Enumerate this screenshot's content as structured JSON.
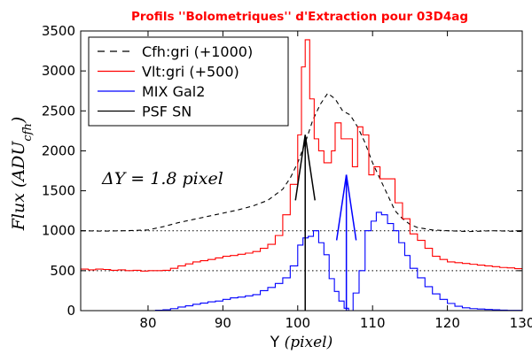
{
  "chart_data": {
    "type": "line",
    "title": "Profils ''Bolometriques'' d'Extraction pour 03D4ag",
    "xlabel_text": "Y",
    "xlabel_math": "(pixel)",
    "ylabel_math": "Flux (ADU",
    "ylabel_sub": "cfh",
    "ylabel_close": ")",
    "xlim": [
      71,
      130
    ],
    "ylim": [
      0,
      3500
    ],
    "xticks": [
      80,
      90,
      100,
      110,
      120,
      130
    ],
    "yticks": [
      0,
      500,
      1000,
      1500,
      2000,
      2500,
      3000,
      3500
    ],
    "annotation": "ΔY = 1.8 pixel",
    "reference_lines": [
      {
        "y": 1000,
        "style": "dotted",
        "color": "#000000"
      },
      {
        "y": 500,
        "style": "dotted",
        "color": "#000000"
      }
    ],
    "legend": [
      "Cfh:gri (+1000)",
      "Vlt:gri (+500)",
      "MIX Gal2",
      "PSF SN"
    ],
    "series": [
      {
        "name": "Cfh:gri (+1000)",
        "color": "#000000",
        "style": "dashed",
        "points": [
          [
            71,
            1000
          ],
          [
            74,
            995
          ],
          [
            77,
            1000
          ],
          [
            80,
            1010
          ],
          [
            82,
            1050
          ],
          [
            84,
            1100
          ],
          [
            86,
            1140
          ],
          [
            88,
            1180
          ],
          [
            90,
            1220
          ],
          [
            92,
            1260
          ],
          [
            94,
            1310
          ],
          [
            96,
            1380
          ],
          [
            98,
            1520
          ],
          [
            99,
            1660
          ],
          [
            100,
            1850
          ],
          [
            101,
            2100
          ],
          [
            102,
            2380
          ],
          [
            103,
            2580
          ],
          [
            104,
            2720
          ],
          [
            105,
            2650
          ],
          [
            106,
            2500
          ],
          [
            107,
            2450
          ],
          [
            108,
            2300
          ],
          [
            109,
            2100
          ],
          [
            110,
            1850
          ],
          [
            111,
            1650
          ],
          [
            112,
            1450
          ],
          [
            113,
            1250
          ],
          [
            114,
            1150
          ],
          [
            115,
            1080
          ],
          [
            116,
            1040
          ],
          [
            118,
            1010
          ],
          [
            120,
            1000
          ],
          [
            123,
            990
          ],
          [
            126,
            1000
          ],
          [
            130,
            990
          ]
        ]
      },
      {
        "name": "Vlt:gri (+500)",
        "color": "#ff0000",
        "style": "step",
        "points": [
          [
            70,
            530
          ],
          [
            71,
            520
          ],
          [
            72,
            510
          ],
          [
            73,
            520
          ],
          [
            74,
            515
          ],
          [
            75,
            505
          ],
          [
            76,
            510
          ],
          [
            77,
            500
          ],
          [
            78,
            505
          ],
          [
            79,
            495
          ],
          [
            80,
            500
          ],
          [
            81,
            500
          ],
          [
            82,
            505
          ],
          [
            83,
            530
          ],
          [
            84,
            560
          ],
          [
            85,
            585
          ],
          [
            86,
            610
          ],
          [
            87,
            625
          ],
          [
            88,
            640
          ],
          [
            89,
            660
          ],
          [
            90,
            680
          ],
          [
            91,
            690
          ],
          [
            92,
            705
          ],
          [
            93,
            720
          ],
          [
            94,
            740
          ],
          [
            95,
            780
          ],
          [
            96,
            830
          ],
          [
            97,
            940
          ],
          [
            98,
            1200
          ],
          [
            99,
            1580
          ],
          [
            100,
            2200
          ],
          [
            100.5,
            3050
          ],
          [
            101,
            3390
          ],
          [
            101.6,
            2650
          ],
          [
            102.2,
            2150
          ],
          [
            102.8,
            2000
          ],
          [
            103.5,
            1850
          ],
          [
            104.5,
            2000
          ],
          [
            105,
            2350
          ],
          [
            105.8,
            2150
          ],
          [
            106.5,
            2150
          ],
          [
            107.3,
            1800
          ],
          [
            108,
            2300
          ],
          [
            108.7,
            2200
          ],
          [
            109.5,
            1700
          ],
          [
            110.2,
            1800
          ],
          [
            111,
            1650
          ],
          [
            112,
            1650
          ],
          [
            113,
            1350
          ],
          [
            114,
            1150
          ],
          [
            115,
            960
          ],
          [
            116,
            880
          ],
          [
            117,
            780
          ],
          [
            118,
            680
          ],
          [
            119,
            640
          ],
          [
            120,
            610
          ],
          [
            121,
            600
          ],
          [
            122,
            590
          ],
          [
            123,
            580
          ],
          [
            124,
            570
          ],
          [
            125,
            560
          ],
          [
            126,
            550
          ],
          [
            127,
            540
          ],
          [
            128,
            535
          ],
          [
            129,
            525
          ],
          [
            130,
            520
          ]
        ]
      },
      {
        "name": "MIX Gal2",
        "color": "#0000ff",
        "style": "step",
        "points": [
          [
            80,
            0
          ],
          [
            81,
            5
          ],
          [
            82,
            10
          ],
          [
            83,
            25
          ],
          [
            84,
            45
          ],
          [
            85,
            60
          ],
          [
            86,
            80
          ],
          [
            87,
            95
          ],
          [
            88,
            110
          ],
          [
            89,
            120
          ],
          [
            90,
            140
          ],
          [
            91,
            160
          ],
          [
            92,
            170
          ],
          [
            93,
            185
          ],
          [
            94,
            200
          ],
          [
            95,
            250
          ],
          [
            96,
            290
          ],
          [
            97,
            340
          ],
          [
            98,
            410
          ],
          [
            99,
            560
          ],
          [
            100,
            820
          ],
          [
            100.7,
            910
          ],
          [
            101.4,
            930
          ],
          [
            102.1,
            1000
          ],
          [
            102.8,
            850
          ],
          [
            103.5,
            700
          ],
          [
            104.2,
            400
          ],
          [
            104.9,
            240
          ],
          [
            105.5,
            120
          ],
          [
            106.2,
            30
          ],
          [
            106.8,
            0
          ],
          [
            107.4,
            220
          ],
          [
            108.2,
            500
          ],
          [
            109,
            1000
          ],
          [
            109.8,
            1120
          ],
          [
            110.5,
            1230
          ],
          [
            111.2,
            1200
          ],
          [
            112,
            1090
          ],
          [
            112.8,
            1000
          ],
          [
            113.5,
            850
          ],
          [
            114.3,
            690
          ],
          [
            115,
            530
          ],
          [
            116,
            410
          ],
          [
            117,
            300
          ],
          [
            118,
            210
          ],
          [
            119,
            140
          ],
          [
            120,
            90
          ],
          [
            121,
            55
          ],
          [
            122,
            35
          ],
          [
            123,
            25
          ],
          [
            124,
            20
          ],
          [
            125,
            15
          ],
          [
            126,
            10
          ],
          [
            127,
            6
          ],
          [
            128,
            4
          ],
          [
            130,
            0
          ]
        ]
      },
      {
        "name": "PSF SN",
        "color": "#000000",
        "style": "arrow",
        "points": [
          [
            101,
            0
          ],
          [
            101,
            2200
          ]
        ]
      },
      {
        "name": "MIX Gal2 arrow",
        "color": "#0000ff",
        "style": "arrow",
        "points": [
          [
            106.5,
            0
          ],
          [
            106.5,
            1700
          ]
        ]
      }
    ]
  }
}
